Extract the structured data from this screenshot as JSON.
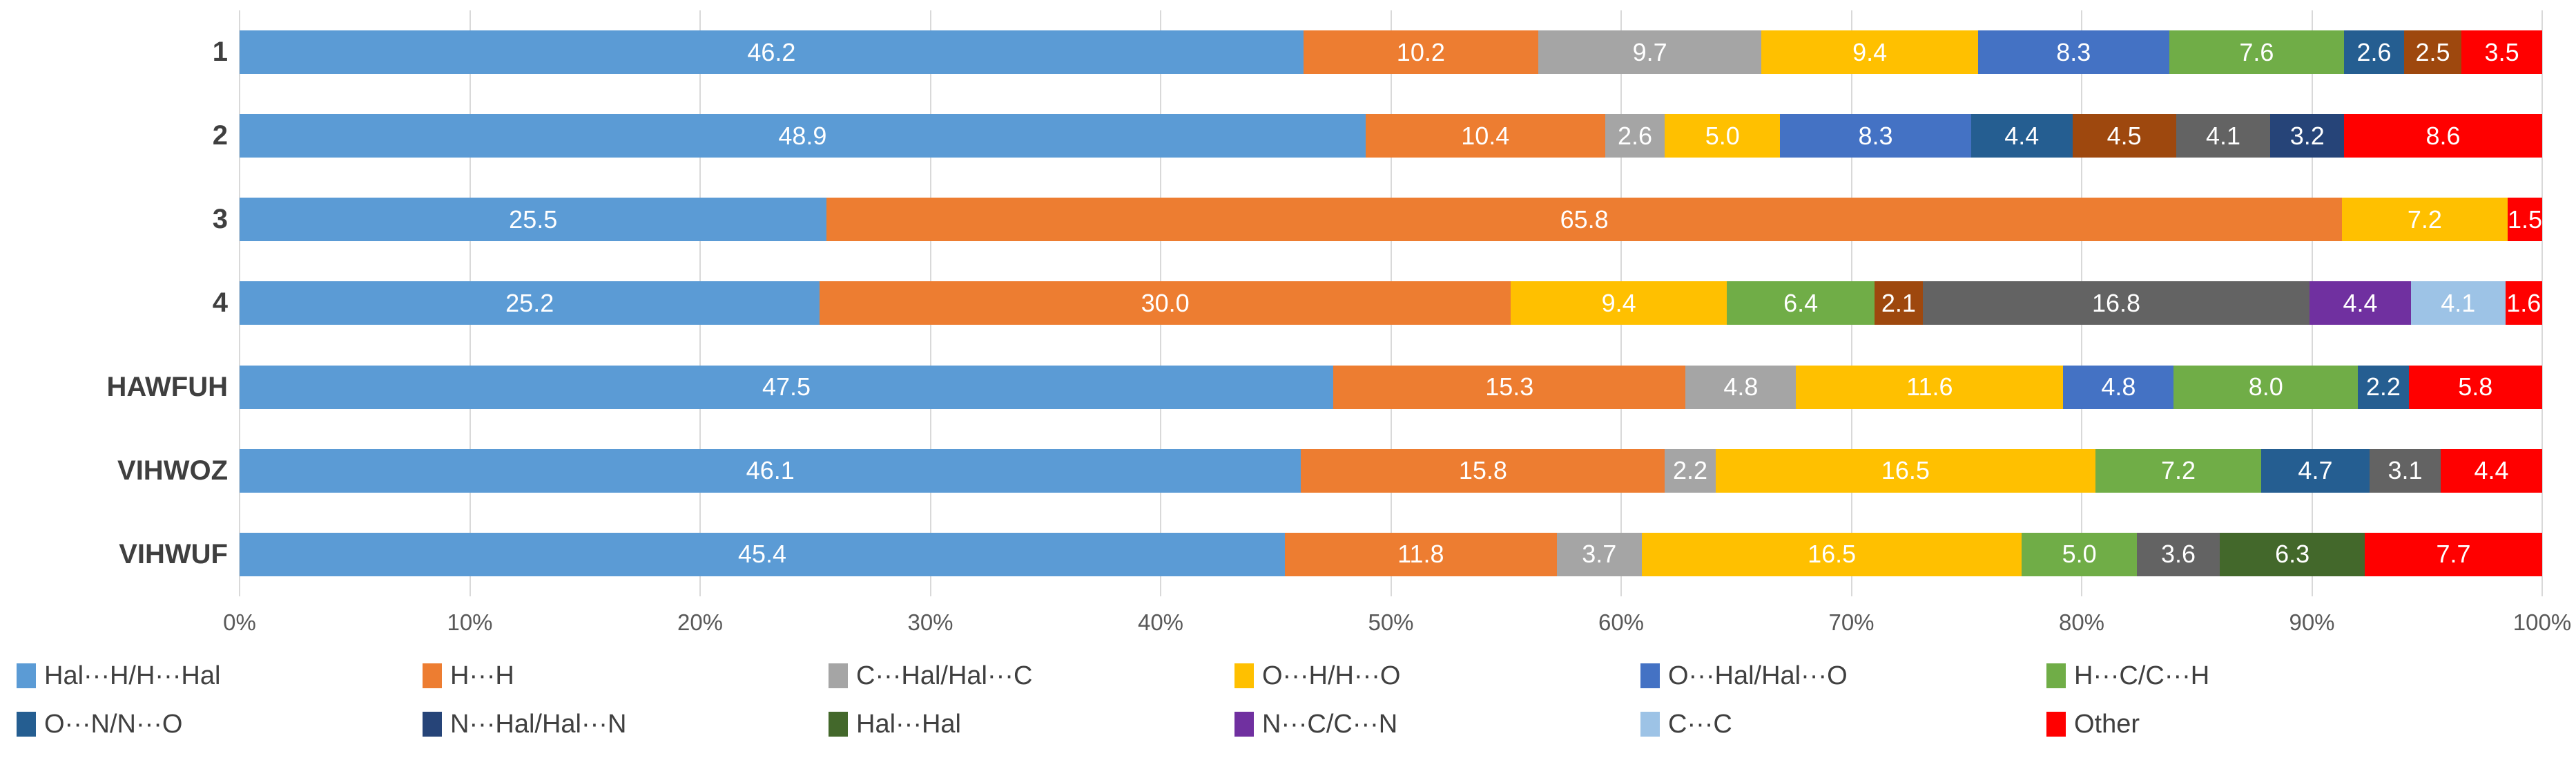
{
  "chart_data": {
    "type": "bar",
    "orientation": "horizontal",
    "stacked": true,
    "stack_total": 100,
    "unit": "%",
    "title": "",
    "xlabel": "",
    "ylabel": "",
    "xlim": [
      0,
      100
    ],
    "grid": true,
    "legend_position": "bottom",
    "value_label_color": "#ffffff",
    "categories": [
      "1",
      "2",
      "3",
      "4",
      "HAWFUH",
      "VIHWOZ",
      "VIHWUF"
    ],
    "x_axis": {
      "ticks": [
        "0%",
        "10%",
        "20%",
        "30%",
        "40%",
        "50%",
        "60%",
        "70%",
        "80%",
        "90%",
        "100%"
      ]
    },
    "palette": {
      "lightBlue": "#5B9BD5",
      "orange": "#ED7D31",
      "gray": "#A5A5A5",
      "gold": "#FFC000",
      "blue": "#4472C4",
      "green": "#70AD47",
      "darkBlue": "#255E91",
      "navy": "#264478",
      "darkGreen": "#43682B",
      "purple": "#7030A0",
      "paleBlue": "#9DC3E6",
      "red": "#FF0000",
      "brown": "#9E480E",
      "darkGray": "#636363"
    },
    "legend": [
      {
        "label": "Hal···H/H···Hal",
        "color": "lightBlue"
      },
      {
        "label": "H···H",
        "color": "orange"
      },
      {
        "label": "C···Hal/Hal···C",
        "color": "gray"
      },
      {
        "label": "O···H/H···O",
        "color": "gold"
      },
      {
        "label": "O···Hal/Hal···O",
        "color": "blue"
      },
      {
        "label": "H···C/C···H",
        "color": "green"
      },
      {
        "label": "O···N/N···O",
        "color": "darkBlue"
      },
      {
        "label": "N···Hal/Hal···N",
        "color": "navy"
      },
      {
        "label": "Hal···Hal",
        "color": "darkGreen"
      },
      {
        "label": "N···C/C···N",
        "color": "purple"
      },
      {
        "label": "C···C",
        "color": "paleBlue"
      },
      {
        "label": "Other",
        "color": "red"
      }
    ],
    "rows": [
      {
        "category": "1",
        "segments": [
          {
            "value": 46.2,
            "color": "lightBlue"
          },
          {
            "value": 10.2,
            "color": "orange"
          },
          {
            "value": 9.7,
            "color": "gray"
          },
          {
            "value": 9.4,
            "color": "gold"
          },
          {
            "value": 8.3,
            "color": "blue"
          },
          {
            "value": 7.6,
            "color": "green"
          },
          {
            "value": 2.6,
            "color": "darkBlue"
          },
          {
            "value": 2.5,
            "color": "brown"
          },
          {
            "value": 3.5,
            "color": "red"
          }
        ]
      },
      {
        "category": "2",
        "segments": [
          {
            "value": 48.9,
            "color": "lightBlue"
          },
          {
            "value": 10.4,
            "color": "orange"
          },
          {
            "value": 2.6,
            "color": "gray"
          },
          {
            "value": 5.0,
            "color": "gold"
          },
          {
            "value": 8.3,
            "color": "blue"
          },
          {
            "value": 4.4,
            "color": "darkBlue"
          },
          {
            "value": 4.5,
            "color": "brown"
          },
          {
            "value": 4.1,
            "color": "darkGray"
          },
          {
            "value": 3.2,
            "color": "navy"
          },
          {
            "value": 8.6,
            "color": "red"
          }
        ]
      },
      {
        "category": "3",
        "segments": [
          {
            "value": 25.5,
            "color": "lightBlue"
          },
          {
            "value": 65.8,
            "color": "orange"
          },
          {
            "value": 7.2,
            "color": "gold"
          },
          {
            "value": 1.5,
            "color": "red"
          }
        ]
      },
      {
        "category": "4",
        "segments": [
          {
            "value": 25.2,
            "color": "lightBlue"
          },
          {
            "value": 30.0,
            "color": "orange"
          },
          {
            "value": 9.4,
            "color": "gold"
          },
          {
            "value": 6.4,
            "color": "green"
          },
          {
            "value": 2.1,
            "color": "brown"
          },
          {
            "value": 16.8,
            "color": "darkGray"
          },
          {
            "value": 4.4,
            "color": "purple"
          },
          {
            "value": 4.1,
            "color": "paleBlue"
          },
          {
            "value": 1.6,
            "color": "red"
          }
        ]
      },
      {
        "category": "HAWFUH",
        "segments": [
          {
            "value": 47.5,
            "color": "lightBlue"
          },
          {
            "value": 15.3,
            "color": "orange"
          },
          {
            "value": 4.8,
            "color": "gray"
          },
          {
            "value": 11.6,
            "color": "gold"
          },
          {
            "value": 4.8,
            "color": "blue"
          },
          {
            "value": 8.0,
            "color": "green"
          },
          {
            "value": 2.2,
            "color": "darkBlue"
          },
          {
            "value": 5.8,
            "color": "red"
          }
        ]
      },
      {
        "category": "VIHWOZ",
        "segments": [
          {
            "value": 46.1,
            "color": "lightBlue"
          },
          {
            "value": 15.8,
            "color": "orange"
          },
          {
            "value": 2.2,
            "color": "gray"
          },
          {
            "value": 16.5,
            "color": "gold"
          },
          {
            "value": 7.2,
            "color": "green"
          },
          {
            "value": 4.7,
            "color": "darkBlue"
          },
          {
            "value": 3.1,
            "color": "darkGray"
          },
          {
            "value": 4.4,
            "color": "red"
          }
        ]
      },
      {
        "category": "VIHWUF",
        "segments": [
          {
            "value": 45.4,
            "color": "lightBlue"
          },
          {
            "value": 11.8,
            "color": "orange"
          },
          {
            "value": 3.7,
            "color": "gray"
          },
          {
            "value": 16.5,
            "color": "gold"
          },
          {
            "value": 5.0,
            "color": "green"
          },
          {
            "value": 3.6,
            "color": "darkGray"
          },
          {
            "value": 6.3,
            "color": "darkGreen"
          },
          {
            "value": 7.7,
            "color": "red"
          }
        ]
      }
    ]
  }
}
